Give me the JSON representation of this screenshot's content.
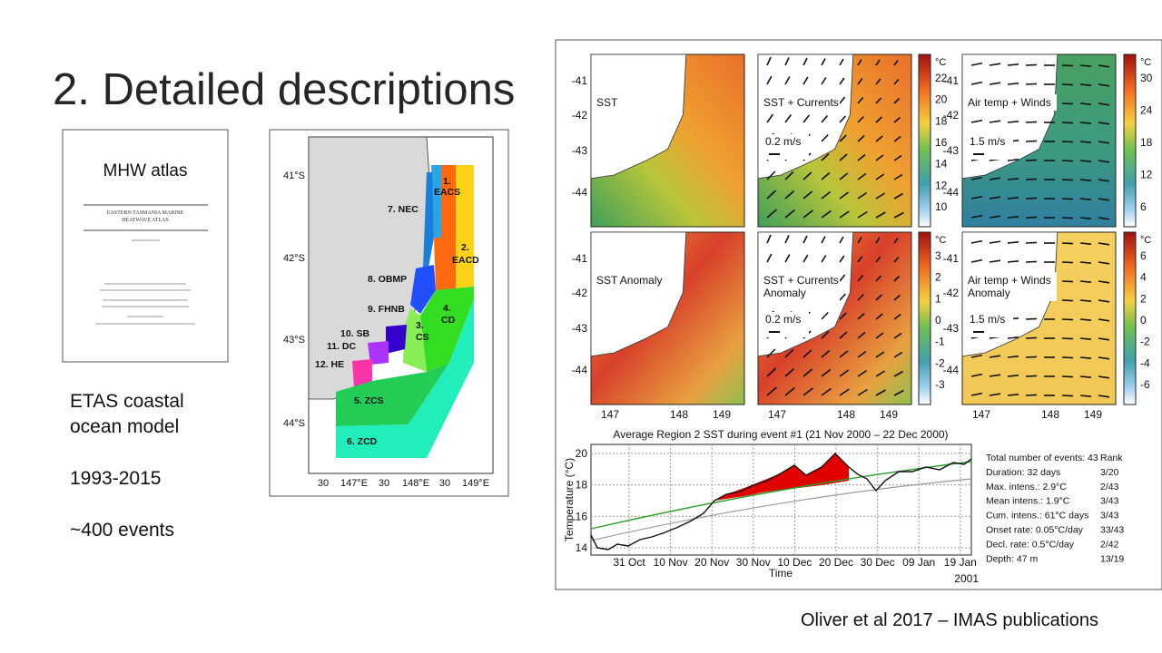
{
  "slide": {
    "title": "2. Detailed descriptions",
    "notes": [
      "ETAS coastal",
      "ocean model",
      "1993-2015",
      "~400 events"
    ],
    "citation": "Oliver et al 2017 – IMAS publications"
  },
  "atlas_cover": {
    "title": "MHW atlas",
    "subtitle_lines": [
      "EASTERN TASMANIA MARINE",
      "HEATWAVE ATLAS"
    ]
  },
  "region_map": {
    "regions": [
      "1.",
      "EACS",
      "2.",
      "EACD",
      "3.",
      "CS",
      "4.",
      "CD",
      "5. ZCS",
      "6. ZCD",
      "7. NEC",
      "8. OBMP",
      "9. FHNB",
      "10. SB",
      "11. DC",
      "12. HE"
    ],
    "lat_labels": [
      "41°S",
      "42°S",
      "43°S",
      "44°S"
    ],
    "lon_labels": [
      "30",
      "147°E",
      "30",
      "148°E",
      "30",
      "149°E"
    ]
  },
  "figure": {
    "panels": [
      {
        "label_lines": [
          "SST"
        ]
      },
      {
        "label_lines": [
          "SST + Currents"
        ],
        "scale": "0.2 m/s"
      },
      {
        "label_lines": [
          "Air temp + Winds"
        ],
        "scale": "1.5 m/s"
      },
      {
        "label_lines": [
          "SST Anomaly"
        ]
      },
      {
        "label_lines": [
          "SST + Currents",
          "Anomaly"
        ],
        "scale": "0.2 m/s"
      },
      {
        "label_lines": [
          "Air temp + Winds",
          "Anomaly"
        ],
        "scale": "1.5 m/s"
      }
    ],
    "colorbars": [
      {
        "unit": "°C",
        "ticks": [
          22,
          20,
          18,
          16,
          14,
          12,
          10
        ]
      },
      {
        "unit": "°C",
        "ticks": [
          30,
          24,
          18,
          12,
          6
        ]
      },
      {
        "unit": "°C",
        "ticks": [
          3,
          2,
          1,
          0,
          -1,
          -2,
          -3
        ]
      },
      {
        "unit": "°C",
        "ticks": [
          6,
          4,
          2,
          0,
          -2,
          -4,
          -6
        ]
      }
    ],
    "lat_ticks": [
      -41,
      -42,
      -43,
      -44
    ],
    "lon_ticks": [
      147,
      148,
      149
    ],
    "time_series": {
      "title": "Average Region 2 SST during event #1 (21 Nov 2000 – 22 Dec 2000)",
      "y_label": "Temperature (°C)",
      "y_ticks": [
        14,
        16,
        18,
        20
      ],
      "x_ticks": [
        "31 Oct",
        "10 Nov",
        "20 Nov",
        "30 Nov",
        "10 Dec",
        "20 Dec",
        "30 Dec",
        "09 Jan",
        "19 Jan"
      ],
      "x_label": "Time",
      "year": "2001"
    },
    "stats": [
      [
        "Total number of events: 43",
        "Rank"
      ],
      [
        "Duration: 32 days",
        "3/20"
      ],
      [
        "Max. intens.: 2.9°C",
        "2/43"
      ],
      [
        "Mean intens.: 1.9°C",
        "3/43"
      ],
      [
        "Cum. intens.: 61°C days",
        "3/43"
      ],
      [
        "Onset rate: 0.05°C/day",
        "33/43"
      ],
      [
        "Decl. rate: 0.5°C/day",
        "2/42"
      ],
      [
        "Depth: 47 m",
        "13/19"
      ]
    ]
  }
}
